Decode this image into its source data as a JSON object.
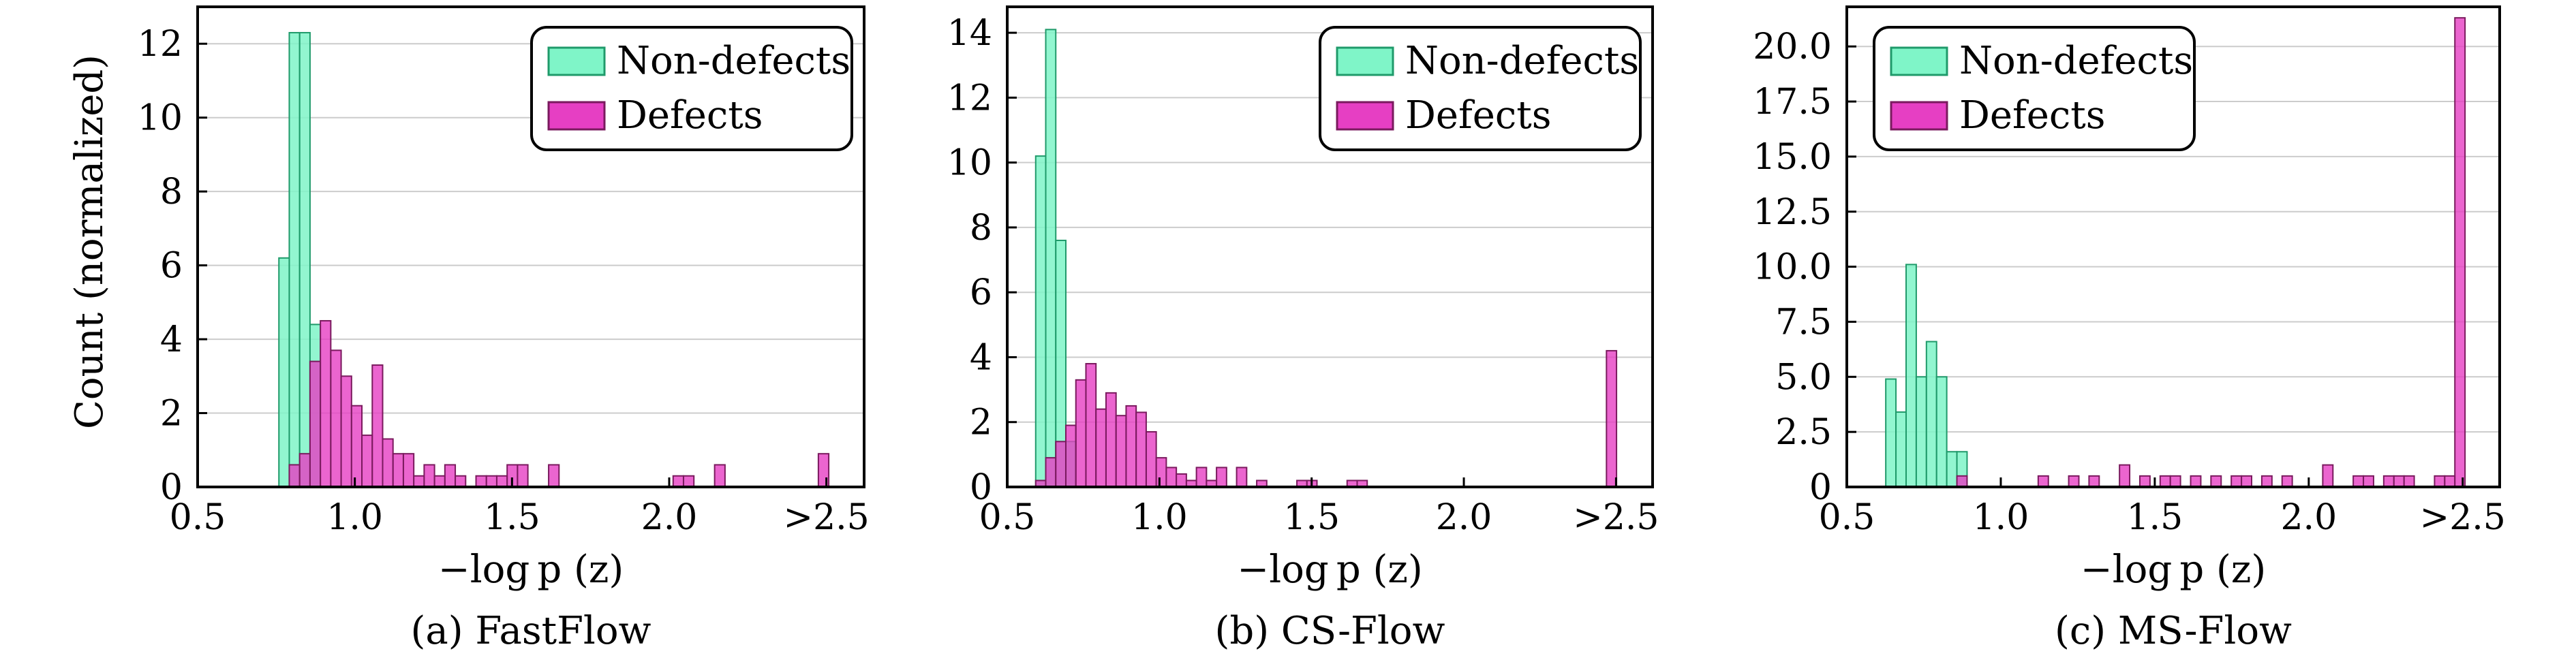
{
  "colors": {
    "non_defects_fill": "#7ff5c8",
    "non_defects_edge": "#1f9a6a",
    "defects_fill": "#e63fc3",
    "defects_edge": "#7a1a5e",
    "grid": "#cccccc"
  },
  "shared_ylabel": "Count (normalized)",
  "chart_data": [
    {
      "type": "bar",
      "caption": "(a) FastFlow",
      "xlabel": "−log p (z)",
      "xlim": [
        0.5,
        2.62
      ],
      "ylim": [
        0,
        13.0
      ],
      "xticks": [
        0.5,
        1.0,
        1.5,
        2.0,
        2.5
      ],
      "xtick_labels": [
        "0.5",
        "1.0",
        "1.5",
        "2.0",
        ">2.5"
      ],
      "yticks": [
        0,
        2,
        4,
        6,
        8,
        10,
        12
      ],
      "ytick_labels": [
        "0",
        "2",
        "4",
        "6",
        "8",
        "10",
        "12"
      ],
      "grid": "horizontal",
      "legend": {
        "position": "top-right",
        "entries": [
          "Non-defects",
          "Defects"
        ]
      },
      "bin_width": 0.033,
      "series": [
        {
          "name": "Non-defects",
          "x": [
            0.775,
            0.808,
            0.841,
            0.874
          ],
          "values": [
            6.2,
            12.3,
            12.3,
            4.4
          ]
        },
        {
          "name": "Defects",
          "x": [
            0.808,
            0.841,
            0.874,
            0.907,
            0.94,
            0.973,
            1.006,
            1.039,
            1.072,
            1.105,
            1.138,
            1.171,
            1.204,
            1.237,
            1.27,
            1.303,
            1.336,
            1.402,
            1.435,
            1.468,
            1.501,
            1.534,
            1.633,
            2.029,
            2.062,
            2.161,
            2.491
          ],
          "values": [
            0.6,
            0.9,
            3.4,
            4.5,
            3.7,
            3.0,
            2.2,
            1.4,
            3.3,
            1.3,
            0.9,
            0.9,
            0.3,
            0.6,
            0.3,
            0.6,
            0.3,
            0.3,
            0.3,
            0.3,
            0.6,
            0.6,
            0.6,
            0.3,
            0.3,
            0.6,
            0.9
          ]
        }
      ]
    },
    {
      "type": "bar",
      "caption": "(b) CS-Flow",
      "xlabel": "−log p (z)",
      "xlim": [
        0.5,
        2.62
      ],
      "ylim": [
        0,
        14.8
      ],
      "xticks": [
        0.5,
        1.0,
        1.5,
        2.0,
        2.5
      ],
      "xtick_labels": [
        "0.5",
        "1.0",
        "1.5",
        "2.0",
        ">2.5"
      ],
      "yticks": [
        0,
        2,
        4,
        6,
        8,
        10,
        12,
        14
      ],
      "ytick_labels": [
        "0",
        "2",
        "4",
        "6",
        "8",
        "10",
        "12",
        "14"
      ],
      "grid": "horizontal",
      "legend": {
        "position": "top-right",
        "entries": [
          "Non-defects",
          "Defects"
        ]
      },
      "bin_width": 0.033,
      "series": [
        {
          "name": "Non-defects",
          "x": [
            0.61,
            0.643,
            0.676,
            0.709
          ],
          "values": [
            10.2,
            14.1,
            7.6,
            1.4
          ]
        },
        {
          "name": "Defects",
          "x": [
            0.61,
            0.643,
            0.676,
            0.709,
            0.742,
            0.775,
            0.808,
            0.841,
            0.874,
            0.907,
            0.94,
            0.973,
            1.006,
            1.039,
            1.072,
            1.105,
            1.138,
            1.171,
            1.204,
            1.27,
            1.336,
            1.468,
            1.501,
            1.633,
            1.666,
            2.485
          ],
          "values": [
            0.2,
            0.9,
            1.4,
            1.9,
            3.3,
            3.8,
            2.4,
            2.9,
            2.2,
            2.5,
            2.3,
            1.7,
            0.9,
            0.6,
            0.4,
            0.2,
            0.6,
            0.2,
            0.6,
            0.6,
            0.2,
            0.2,
            0.2,
            0.2,
            0.2,
            4.2
          ]
        }
      ]
    },
    {
      "type": "bar",
      "caption": "(c) MS-Flow",
      "xlabel": "−log p (z)",
      "xlim": [
        0.5,
        2.62
      ],
      "ylim": [
        0,
        21.8
      ],
      "xticks": [
        0.5,
        1.0,
        1.5,
        2.0,
        2.5
      ],
      "xtick_labels": [
        "0.5",
        "1.0",
        "1.5",
        "2.0",
        ">2.5"
      ],
      "yticks": [
        0,
        2.5,
        5.0,
        7.5,
        10.0,
        12.5,
        15.0,
        17.5,
        20.0
      ],
      "ytick_labels": [
        "0",
        "2.5",
        "5.0",
        "7.5",
        "10.0",
        "12.5",
        "15.0",
        "17.5",
        "20.0"
      ],
      "grid": "horizontal",
      "legend": {
        "position": "top-left",
        "entries": [
          "Non-defects",
          "Defects"
        ]
      },
      "bin_width": 0.033,
      "series": [
        {
          "name": "Non-defects",
          "x": [
            0.643,
            0.676,
            0.709,
            0.742,
            0.775,
            0.808,
            0.841,
            0.874
          ],
          "values": [
            4.9,
            3.4,
            10.1,
            5.0,
            6.6,
            5.0,
            1.6,
            1.6
          ]
        },
        {
          "name": "Defects",
          "x": [
            0.874,
            1.138,
            1.237,
            1.303,
            1.402,
            1.468,
            1.534,
            1.567,
            1.633,
            1.699,
            1.765,
            1.798,
            1.864,
            1.93,
            2.062,
            2.161,
            2.194,
            2.26,
            2.293,
            2.326,
            2.425,
            2.458,
            2.491
          ],
          "values": [
            0.5,
            0.5,
            0.5,
            0.5,
            1.0,
            0.5,
            0.5,
            0.5,
            0.5,
            0.5,
            0.5,
            0.5,
            0.5,
            0.5,
            1.0,
            0.5,
            0.5,
            0.5,
            0.5,
            0.5,
            0.5,
            0.5,
            21.3
          ]
        }
      ]
    }
  ]
}
